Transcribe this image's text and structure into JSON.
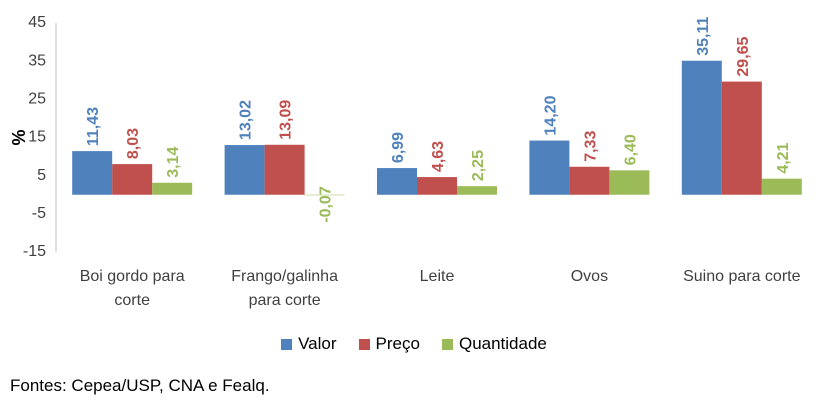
{
  "chart_data": {
    "type": "bar",
    "ylabel": "%",
    "ylim": [
      -15,
      45
    ],
    "yticks": [
      45,
      35,
      25,
      15,
      5,
      -5,
      -15
    ],
    "categories": [
      [
        "Boi gordo para",
        "corte"
      ],
      [
        "Frango/galinha",
        "para corte"
      ],
      [
        "Leite"
      ],
      [
        "Ovos"
      ],
      [
        "Suino para corte"
      ]
    ],
    "series": [
      {
        "name": "Valor",
        "color": "#4F81BD",
        "values": [
          11.43,
          13.02,
          6.99,
          14.2,
          35.11
        ],
        "labels": [
          "11,43",
          "13,02",
          "6,99",
          "14,20",
          "35,11"
        ]
      },
      {
        "name": "Preço",
        "color": "#C0504D",
        "values": [
          8.03,
          13.09,
          4.63,
          7.33,
          29.65
        ],
        "labels": [
          "8,03",
          "13,09",
          "4,63",
          "7,33",
          "29,65"
        ]
      },
      {
        "name": "Quantidade",
        "color": "#9BBB59",
        "values": [
          3.14,
          -0.07,
          2.25,
          6.4,
          4.21
        ],
        "labels": [
          "3,14",
          "-0,07",
          "2,25",
          "6,40",
          "4,21"
        ]
      }
    ],
    "legend_position": "bottom"
  },
  "source": "Fontes: Cepea/USP, CNA e Fealq."
}
